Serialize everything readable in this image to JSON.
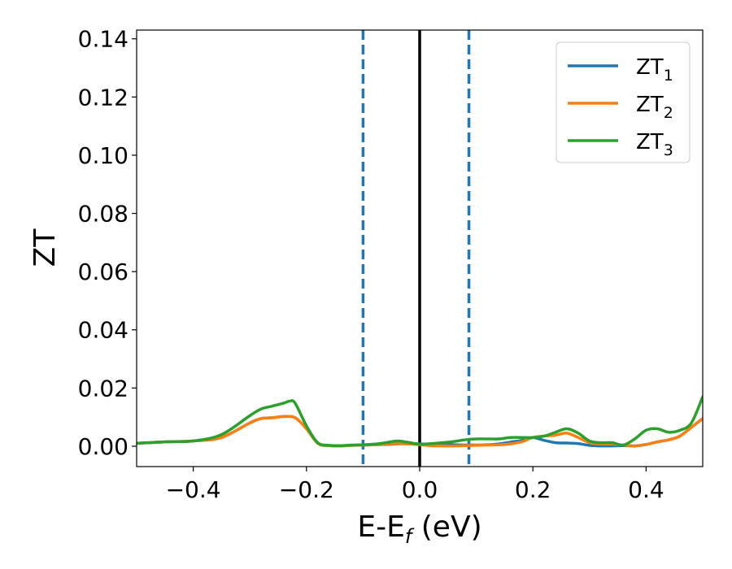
{
  "chart_data": {
    "type": "line",
    "xlabel_main": "E-E",
    "xlabel_sub": "f",
    "xlabel_unit": " (eV)",
    "ylabel": "ZT",
    "xlim": [
      -0.5,
      0.5
    ],
    "ylim": [
      -0.007,
      0.143
    ],
    "xticks": [
      -0.4,
      -0.2,
      0.0,
      0.2,
      0.4
    ],
    "xtick_labels": [
      "−0.4",
      "−0.2",
      "0.0",
      "0.2",
      "0.4"
    ],
    "yticks": [
      0.0,
      0.02,
      0.04,
      0.06,
      0.08,
      0.1,
      0.12,
      0.14
    ],
    "ytick_labels": [
      "0.00",
      "0.02",
      "0.04",
      "0.06",
      "0.08",
      "0.10",
      "0.12",
      "0.14"
    ],
    "legend_position": "top-right",
    "vertical_lines": [
      {
        "x": -0.1,
        "style": "dashed",
        "color": "#1f77b4"
      },
      {
        "x": 0.0,
        "style": "solid",
        "color": "#000000"
      },
      {
        "x": 0.087,
        "style": "dashed",
        "color": "#1f77b4"
      }
    ],
    "series": [
      {
        "name": "ZT",
        "name_sub": "1",
        "color": "#1f77b4",
        "x": [
          -0.5,
          -0.45,
          -0.4,
          -0.35,
          -0.3,
          -0.28,
          -0.26,
          -0.24,
          -0.22,
          -0.2,
          -0.18,
          -0.16,
          -0.14,
          -0.12,
          -0.1,
          -0.08,
          -0.06,
          -0.04,
          -0.02,
          0.0,
          0.02,
          0.04,
          0.06,
          0.08,
          0.1,
          0.12,
          0.14,
          0.16,
          0.18,
          0.2,
          0.22,
          0.24,
          0.26,
          0.28,
          0.3,
          0.32,
          0.34,
          0.36,
          0.38,
          0.4,
          0.42,
          0.44,
          0.46,
          0.48,
          0.5
        ],
        "y": [
          0.001,
          0.0015,
          0.0018,
          0.003,
          0.008,
          0.0095,
          0.0098,
          0.0102,
          0.0098,
          0.006,
          0.001,
          0.0002,
          0.0001,
          0.0003,
          0.0004,
          0.0005,
          0.0006,
          0.0008,
          0.0009,
          0.0008,
          0.0007,
          0.0006,
          0.0005,
          0.0004,
          0.0004,
          0.0005,
          0.0008,
          0.0014,
          0.002,
          0.003,
          0.002,
          0.0012,
          0.0011,
          0.0009,
          0.0003,
          0.0001,
          0.0001,
          0.0002,
          0.0001,
          0.0006,
          0.0015,
          0.0022,
          0.0035,
          0.0065,
          0.0095
        ]
      },
      {
        "name": "ZT",
        "name_sub": "2",
        "color": "#ff7f0e",
        "x": [
          -0.5,
          -0.45,
          -0.4,
          -0.35,
          -0.3,
          -0.28,
          -0.26,
          -0.24,
          -0.22,
          -0.2,
          -0.18,
          -0.16,
          -0.14,
          -0.12,
          -0.1,
          -0.08,
          -0.06,
          -0.04,
          -0.02,
          0.0,
          0.02,
          0.04,
          0.06,
          0.08,
          0.1,
          0.12,
          0.14,
          0.16,
          0.18,
          0.2,
          0.22,
          0.24,
          0.26,
          0.28,
          0.3,
          0.32,
          0.34,
          0.36,
          0.38,
          0.4,
          0.42,
          0.44,
          0.46,
          0.48,
          0.5
        ],
        "y": [
          0.001,
          0.0015,
          0.0018,
          0.003,
          0.008,
          0.0095,
          0.0098,
          0.0102,
          0.0098,
          0.006,
          0.001,
          0.0002,
          0.0001,
          0.0003,
          0.0004,
          0.0005,
          0.0007,
          0.0009,
          0.0008,
          0.0005,
          0.0002,
          0.0001,
          0.0001,
          0.0002,
          0.0003,
          0.0004,
          0.0005,
          0.0008,
          0.0015,
          0.003,
          0.0035,
          0.0038,
          0.0045,
          0.003,
          0.0012,
          0.0008,
          0.0007,
          0.0004,
          0.0001,
          0.0006,
          0.0015,
          0.0022,
          0.0035,
          0.0065,
          0.0095
        ]
      },
      {
        "name": "ZT",
        "name_sub": "3",
        "color": "#2ca02c",
        "x": [
          -0.5,
          -0.45,
          -0.4,
          -0.35,
          -0.3,
          -0.28,
          -0.26,
          -0.24,
          -0.23,
          -0.22,
          -0.2,
          -0.18,
          -0.16,
          -0.14,
          -0.12,
          -0.1,
          -0.08,
          -0.06,
          -0.04,
          -0.02,
          0.0,
          0.02,
          0.04,
          0.06,
          0.08,
          0.1,
          0.12,
          0.14,
          0.16,
          0.18,
          0.2,
          0.22,
          0.24,
          0.26,
          0.28,
          0.3,
          0.32,
          0.34,
          0.36,
          0.38,
          0.4,
          0.42,
          0.44,
          0.46,
          0.48,
          0.5
        ],
        "y": [
          0.001,
          0.0015,
          0.0018,
          0.004,
          0.0105,
          0.0128,
          0.0138,
          0.0148,
          0.0155,
          0.0148,
          0.007,
          0.0012,
          0.0003,
          0.0002,
          0.0004,
          0.0005,
          0.0007,
          0.0012,
          0.0018,
          0.0013,
          0.0007,
          0.0009,
          0.0012,
          0.0016,
          0.0022,
          0.0025,
          0.0025,
          0.0025,
          0.003,
          0.003,
          0.003,
          0.0035,
          0.0048,
          0.006,
          0.0045,
          0.0018,
          0.0012,
          0.0012,
          0.0004,
          0.0025,
          0.0055,
          0.006,
          0.0048,
          0.0055,
          0.008,
          0.017
        ]
      }
    ]
  }
}
